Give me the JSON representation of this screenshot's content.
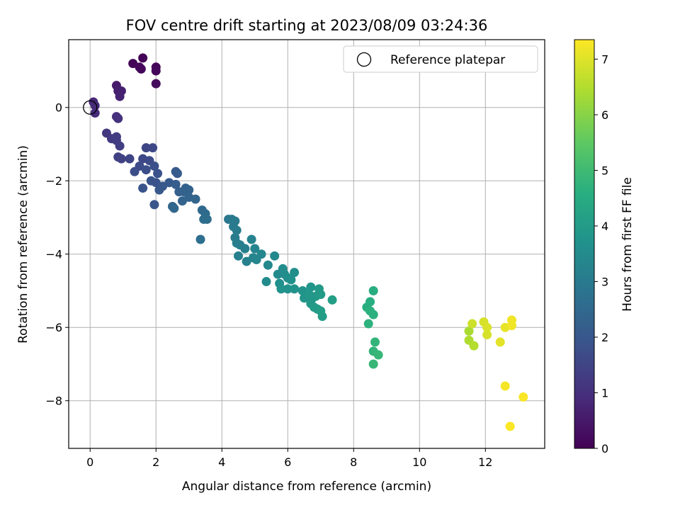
{
  "chart_data": {
    "type": "scatter",
    "title": "FOV centre drift starting at 2023/08/09 03:24:36",
    "xlabel": "Angular distance from reference (arcmin)",
    "ylabel": "Rotation from reference (arcmin)",
    "xlim": [
      -0.65,
      13.8
    ],
    "ylim": [
      -9.3,
      1.85
    ],
    "xticks": [
      0,
      2,
      4,
      6,
      8,
      10,
      12
    ],
    "yticks": [
      0,
      -2,
      -4,
      -6,
      -8
    ],
    "grid": true,
    "legend": {
      "position": "top-right",
      "entries": [
        {
          "label": "Reference platepar",
          "marker": "open-circle"
        }
      ]
    },
    "reference_point": {
      "x": 0,
      "y": 0
    },
    "colorbar": {
      "label": "Hours from first FF file",
      "colormap": "viridis",
      "range": [
        0,
        7.35
      ],
      "ticks": [
        0,
        1,
        2,
        3,
        4,
        5,
        6,
        7
      ]
    },
    "points": [
      {
        "x": 1.6,
        "y": 1.35,
        "h": 0.05
      },
      {
        "x": 1.3,
        "y": 1.2,
        "h": 0.08
      },
      {
        "x": 1.55,
        "y": 1.05,
        "h": 0.1
      },
      {
        "x": 1.5,
        "y": 1.1,
        "h": 0.12
      },
      {
        "x": 2.0,
        "y": 1.1,
        "h": 0.06
      },
      {
        "x": 2.0,
        "y": 1.0,
        "h": 0.15
      },
      {
        "x": 2.0,
        "y": 0.65,
        "h": 0.2
      },
      {
        "x": 0.8,
        "y": 0.6,
        "h": 0.55
      },
      {
        "x": 0.85,
        "y": 0.45,
        "h": 0.6
      },
      {
        "x": 0.95,
        "y": 0.45,
        "h": 0.65
      },
      {
        "x": 0.9,
        "y": 0.3,
        "h": 0.7
      },
      {
        "x": 0.1,
        "y": 0.15,
        "h": 0.8
      },
      {
        "x": 0.15,
        "y": 0.05,
        "h": 0.85
      },
      {
        "x": 0.15,
        "y": -0.15,
        "h": 0.9
      },
      {
        "x": 0.8,
        "y": -0.25,
        "h": 1.0
      },
      {
        "x": 0.85,
        "y": -0.3,
        "h": 1.05
      },
      {
        "x": 0.5,
        "y": -0.7,
        "h": 1.2
      },
      {
        "x": 0.65,
        "y": -0.85,
        "h": 1.25
      },
      {
        "x": 0.8,
        "y": -0.8,
        "h": 1.3
      },
      {
        "x": 0.8,
        "y": -0.9,
        "h": 1.3
      },
      {
        "x": 0.9,
        "y": -1.05,
        "h": 1.35
      },
      {
        "x": 0.85,
        "y": -1.35,
        "h": 1.4
      },
      {
        "x": 0.95,
        "y": -1.4,
        "h": 1.45
      },
      {
        "x": 1.2,
        "y": -1.4,
        "h": 1.5
      },
      {
        "x": 1.7,
        "y": -1.1,
        "h": 1.55
      },
      {
        "x": 1.9,
        "y": -1.1,
        "h": 1.6
      },
      {
        "x": 1.6,
        "y": -1.4,
        "h": 1.6
      },
      {
        "x": 1.8,
        "y": -1.45,
        "h": 1.65
      },
      {
        "x": 1.5,
        "y": -1.6,
        "h": 1.7
      },
      {
        "x": 1.35,
        "y": -1.75,
        "h": 1.75
      },
      {
        "x": 1.7,
        "y": -1.7,
        "h": 1.75
      },
      {
        "x": 1.95,
        "y": -1.6,
        "h": 1.8
      },
      {
        "x": 2.05,
        "y": -1.8,
        "h": 1.85
      },
      {
        "x": 1.85,
        "y": -2.0,
        "h": 1.9
      },
      {
        "x": 2.0,
        "y": -2.05,
        "h": 1.9
      },
      {
        "x": 1.6,
        "y": -2.2,
        "h": 1.9
      },
      {
        "x": 1.95,
        "y": -2.65,
        "h": 1.95
      },
      {
        "x": 2.1,
        "y": -2.25,
        "h": 2.0
      },
      {
        "x": 2.2,
        "y": -2.15,
        "h": 2.0
      },
      {
        "x": 2.4,
        "y": -2.05,
        "h": 2.05
      },
      {
        "x": 2.6,
        "y": -1.75,
        "h": 2.1
      },
      {
        "x": 2.65,
        "y": -1.8,
        "h": 2.1
      },
      {
        "x": 2.6,
        "y": -2.1,
        "h": 2.15
      },
      {
        "x": 2.7,
        "y": -2.3,
        "h": 2.2
      },
      {
        "x": 2.9,
        "y": -2.2,
        "h": 2.25
      },
      {
        "x": 2.85,
        "y": -2.3,
        "h": 2.3
      },
      {
        "x": 3.0,
        "y": -2.25,
        "h": 2.3
      },
      {
        "x": 3.0,
        "y": -2.45,
        "h": 2.35
      },
      {
        "x": 2.8,
        "y": -2.55,
        "h": 2.35
      },
      {
        "x": 3.2,
        "y": -2.5,
        "h": 2.4
      },
      {
        "x": 2.5,
        "y": -2.7,
        "h": 2.4
      },
      {
        "x": 2.55,
        "y": -2.75,
        "h": 2.45
      },
      {
        "x": 3.4,
        "y": -2.8,
        "h": 2.5
      },
      {
        "x": 3.5,
        "y": -2.9,
        "h": 2.55
      },
      {
        "x": 3.45,
        "y": -3.05,
        "h": 2.6
      },
      {
        "x": 3.55,
        "y": -3.05,
        "h": 2.6
      },
      {
        "x": 3.35,
        "y": -3.6,
        "h": 2.65
      },
      {
        "x": 4.2,
        "y": -3.05,
        "h": 2.9
      },
      {
        "x": 4.3,
        "y": -3.05,
        "h": 2.95
      },
      {
        "x": 4.4,
        "y": -3.1,
        "h": 3.0
      },
      {
        "x": 4.35,
        "y": -3.25,
        "h": 3.0
      },
      {
        "x": 4.45,
        "y": -3.35,
        "h": 3.05
      },
      {
        "x": 4.4,
        "y": -3.55,
        "h": 3.05
      },
      {
        "x": 4.45,
        "y": -3.7,
        "h": 3.1
      },
      {
        "x": 4.55,
        "y": -3.75,
        "h": 3.1
      },
      {
        "x": 4.7,
        "y": -3.85,
        "h": 3.15
      },
      {
        "x": 4.5,
        "y": -4.05,
        "h": 3.15
      },
      {
        "x": 4.75,
        "y": -4.2,
        "h": 3.2
      },
      {
        "x": 4.9,
        "y": -3.6,
        "h": 3.25
      },
      {
        "x": 5.0,
        "y": -3.85,
        "h": 3.3
      },
      {
        "x": 4.95,
        "y": -4.1,
        "h": 3.3
      },
      {
        "x": 5.2,
        "y": -4.0,
        "h": 3.35
      },
      {
        "x": 5.05,
        "y": -4.15,
        "h": 3.35
      },
      {
        "x": 5.4,
        "y": -4.3,
        "h": 3.4
      },
      {
        "x": 5.6,
        "y": -4.05,
        "h": 3.45
      },
      {
        "x": 5.35,
        "y": -4.75,
        "h": 3.5
      },
      {
        "x": 5.7,
        "y": -4.55,
        "h": 3.5
      },
      {
        "x": 5.85,
        "y": -4.4,
        "h": 3.55
      },
      {
        "x": 5.9,
        "y": -4.55,
        "h": 3.55
      },
      {
        "x": 6.0,
        "y": -4.65,
        "h": 3.6
      },
      {
        "x": 6.2,
        "y": -4.5,
        "h": 3.6
      },
      {
        "x": 5.75,
        "y": -4.8,
        "h": 3.65
      },
      {
        "x": 6.1,
        "y": -4.7,
        "h": 3.65
      },
      {
        "x": 5.8,
        "y": -4.95,
        "h": 3.7
      },
      {
        "x": 6.0,
        "y": -4.95,
        "h": 3.7
      },
      {
        "x": 6.2,
        "y": -4.95,
        "h": 3.75
      },
      {
        "x": 6.45,
        "y": -5.0,
        "h": 3.75
      },
      {
        "x": 6.5,
        "y": -5.2,
        "h": 3.8
      },
      {
        "x": 6.7,
        "y": -4.9,
        "h": 3.8
      },
      {
        "x": 6.65,
        "y": -5.1,
        "h": 3.85
      },
      {
        "x": 6.75,
        "y": -5.2,
        "h": 3.85
      },
      {
        "x": 6.7,
        "y": -5.35,
        "h": 3.9
      },
      {
        "x": 6.85,
        "y": -5.15,
        "h": 3.9
      },
      {
        "x": 6.95,
        "y": -4.95,
        "h": 3.95
      },
      {
        "x": 7.0,
        "y": -5.1,
        "h": 3.95
      },
      {
        "x": 6.8,
        "y": -5.45,
        "h": 4.0
      },
      {
        "x": 6.9,
        "y": -5.5,
        "h": 4.0
      },
      {
        "x": 7.0,
        "y": -5.55,
        "h": 4.05
      },
      {
        "x": 7.05,
        "y": -5.7,
        "h": 4.05
      },
      {
        "x": 7.35,
        "y": -5.25,
        "h": 4.1
      },
      {
        "x": 8.6,
        "y": -5.0,
        "h": 4.55
      },
      {
        "x": 8.5,
        "y": -5.3,
        "h": 4.6
      },
      {
        "x": 8.4,
        "y": -5.45,
        "h": 4.6
      },
      {
        "x": 8.5,
        "y": -5.55,
        "h": 4.65
      },
      {
        "x": 8.6,
        "y": -5.65,
        "h": 4.65
      },
      {
        "x": 8.45,
        "y": -5.9,
        "h": 4.7
      },
      {
        "x": 8.65,
        "y": -6.4,
        "h": 4.8
      },
      {
        "x": 8.6,
        "y": -6.65,
        "h": 4.8
      },
      {
        "x": 8.75,
        "y": -6.75,
        "h": 4.85
      },
      {
        "x": 8.6,
        "y": -7.0,
        "h": 4.85
      },
      {
        "x": 11.5,
        "y": -6.1,
        "h": 6.4
      },
      {
        "x": 11.5,
        "y": -6.35,
        "h": 6.45
      },
      {
        "x": 11.6,
        "y": -5.9,
        "h": 6.8
      },
      {
        "x": 11.65,
        "y": -6.5,
        "h": 6.5
      },
      {
        "x": 11.95,
        "y": -5.85,
        "h": 6.9
      },
      {
        "x": 12.05,
        "y": -6.0,
        "h": 6.95
      },
      {
        "x": 12.05,
        "y": -6.2,
        "h": 6.9
      },
      {
        "x": 12.45,
        "y": -6.4,
        "h": 7.05
      },
      {
        "x": 12.6,
        "y": -6.0,
        "h": 7.1
      },
      {
        "x": 12.8,
        "y": -5.8,
        "h": 7.2
      },
      {
        "x": 12.8,
        "y": -5.95,
        "h": 7.2
      },
      {
        "x": 12.6,
        "y": -7.6,
        "h": 7.25
      },
      {
        "x": 13.15,
        "y": -7.9,
        "h": 7.3
      },
      {
        "x": 12.75,
        "y": -8.7,
        "h": 7.32
      }
    ]
  }
}
